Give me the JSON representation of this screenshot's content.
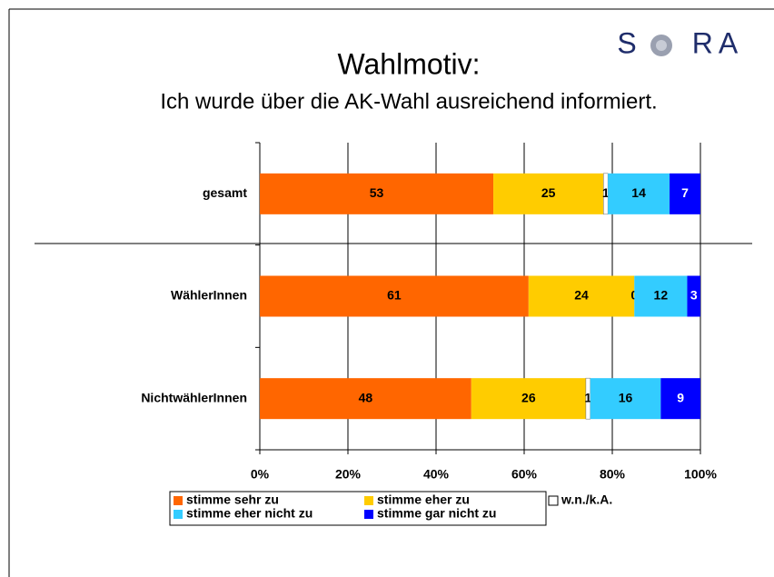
{
  "chart_data": {
    "type": "stacked_bar_horizontal",
    "title": "Wahlmotiv:",
    "subtitle": "Ich wurde über die AK-Wahl ausreichend informiert.",
    "logo": [
      "S",
      "RA"
    ],
    "categories": [
      "gesamt",
      "WählerInnen",
      "NichtwählerInnen"
    ],
    "series": [
      {
        "name": "stimme sehr zu",
        "color": "#ff6600",
        "values": [
          53,
          61,
          48
        ]
      },
      {
        "name": "stimme eher zu",
        "color": "#ffcc00",
        "values": [
          25,
          24,
          26
        ]
      },
      {
        "name": "w.n./k.A.",
        "color": "#ffffff",
        "values": [
          1,
          0,
          1
        ]
      },
      {
        "name": "stimme eher nicht zu",
        "color": "#33ccff",
        "values": [
          14,
          12,
          16
        ]
      },
      {
        "name": "stimme gar nicht zu",
        "color": "#0000ff",
        "values": [
          7,
          3,
          9
        ]
      }
    ],
    "xlim": [
      0,
      100
    ],
    "xticks": [
      {
        "value": 0,
        "label": "0%"
      },
      {
        "value": 20,
        "label": "20%"
      },
      {
        "value": 40,
        "label": "40%"
      },
      {
        "value": 60,
        "label": "60%"
      },
      {
        "value": 80,
        "label": "80%"
      },
      {
        "value": 100,
        "label": "100%"
      }
    ],
    "grid": true,
    "legend": "bottom"
  }
}
